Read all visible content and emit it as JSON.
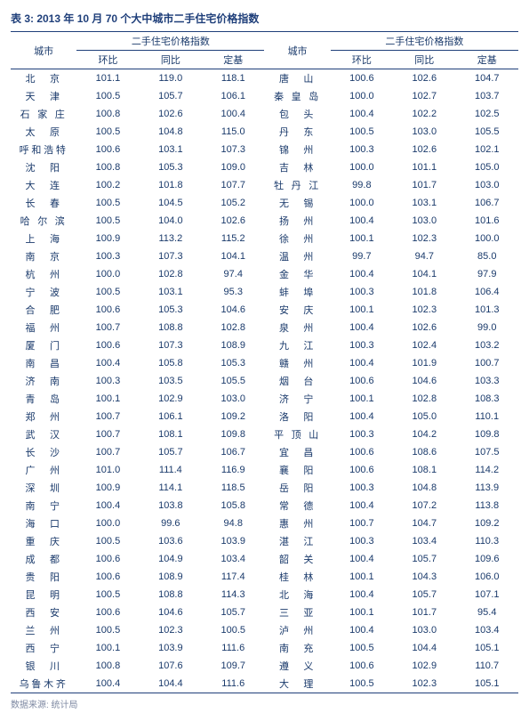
{
  "title": "表 3:  2013 年 10 月 70 个大中城市二手住宅价格指数",
  "headers": {
    "city": "城市",
    "group": "二手住宅价格指数",
    "mom": "环比",
    "yoy": "同比",
    "base": "定基"
  },
  "rows": [
    {
      "lc": "北　京",
      "l": [
        101.1,
        119.0,
        118.1
      ],
      "rc": "唐　山",
      "r": [
        100.6,
        102.6,
        104.7
      ]
    },
    {
      "lc": "天　津",
      "l": [
        100.5,
        105.7,
        106.1
      ],
      "rc": "秦 皇 岛",
      "r": [
        100.0,
        102.7,
        103.7
      ]
    },
    {
      "lc": "石 家 庄",
      "l": [
        100.8,
        102.6,
        100.4
      ],
      "rc": "包　头",
      "r": [
        100.4,
        102.2,
        102.5
      ]
    },
    {
      "lc": "太　原",
      "l": [
        100.5,
        104.8,
        115.0
      ],
      "rc": "丹　东",
      "r": [
        100.5,
        103.0,
        105.5
      ]
    },
    {
      "lc": "呼和浩特",
      "l": [
        100.6,
        103.1,
        107.3
      ],
      "rc": "锦　州",
      "r": [
        100.3,
        102.6,
        102.1
      ]
    },
    {
      "lc": "沈　阳",
      "l": [
        100.8,
        105.3,
        109.0
      ],
      "rc": "吉　林",
      "r": [
        100.0,
        101.1,
        105.0
      ]
    },
    {
      "lc": "大　连",
      "l": [
        100.2,
        101.8,
        107.7
      ],
      "rc": "牡 丹 江",
      "r": [
        99.8,
        101.7,
        103.0
      ]
    },
    {
      "lc": "长　春",
      "l": [
        100.5,
        104.5,
        105.2
      ],
      "rc": "无　锡",
      "r": [
        100.0,
        103.1,
        106.7
      ]
    },
    {
      "lc": "哈 尔 滨",
      "l": [
        100.5,
        104.0,
        102.6
      ],
      "rc": "扬　州",
      "r": [
        100.4,
        103.0,
        101.6
      ]
    },
    {
      "lc": "上　海",
      "l": [
        100.9,
        113.2,
        115.2
      ],
      "rc": "徐　州",
      "r": [
        100.1,
        102.3,
        100.0
      ]
    },
    {
      "lc": "南　京",
      "l": [
        100.3,
        107.3,
        104.1
      ],
      "rc": "温　州",
      "r": [
        99.7,
        94.7,
        85.0
      ]
    },
    {
      "lc": "杭　州",
      "l": [
        100.0,
        102.8,
        97.4
      ],
      "rc": "金　华",
      "r": [
        100.4,
        104.1,
        97.9
      ]
    },
    {
      "lc": "宁　波",
      "l": [
        100.5,
        103.1,
        95.3
      ],
      "rc": "蚌　埠",
      "r": [
        100.3,
        101.8,
        106.4
      ]
    },
    {
      "lc": "合　肥",
      "l": [
        100.6,
        105.3,
        104.6
      ],
      "rc": "安　庆",
      "r": [
        100.1,
        102.3,
        101.3
      ]
    },
    {
      "lc": "福　州",
      "l": [
        100.7,
        108.8,
        102.8
      ],
      "rc": "泉　州",
      "r": [
        100.4,
        102.6,
        99.0
      ]
    },
    {
      "lc": "厦　门",
      "l": [
        100.6,
        107.3,
        108.9
      ],
      "rc": "九　江",
      "r": [
        100.3,
        102.4,
        103.2
      ]
    },
    {
      "lc": "南　昌",
      "l": [
        100.4,
        105.8,
        105.3
      ],
      "rc": "赣　州",
      "r": [
        100.4,
        101.9,
        100.7
      ]
    },
    {
      "lc": "济　南",
      "l": [
        100.3,
        103.5,
        105.5
      ],
      "rc": "烟　台",
      "r": [
        100.6,
        104.6,
        103.3
      ]
    },
    {
      "lc": "青　岛",
      "l": [
        100.1,
        102.9,
        103.0
      ],
      "rc": "济　宁",
      "r": [
        100.1,
        102.8,
        108.3
      ]
    },
    {
      "lc": "郑　州",
      "l": [
        100.7,
        106.1,
        109.2
      ],
      "rc": "洛　阳",
      "r": [
        100.4,
        105.0,
        110.1
      ]
    },
    {
      "lc": "武　汉",
      "l": [
        100.7,
        108.1,
        109.8
      ],
      "rc": "平 顶 山",
      "r": [
        100.3,
        104.2,
        109.8
      ]
    },
    {
      "lc": "长　沙",
      "l": [
        100.7,
        105.7,
        106.7
      ],
      "rc": "宜　昌",
      "r": [
        100.6,
        108.6,
        107.5
      ]
    },
    {
      "lc": "广　州",
      "l": [
        101.0,
        111.4,
        116.9
      ],
      "rc": "襄　阳",
      "r": [
        100.6,
        108.1,
        114.2
      ]
    },
    {
      "lc": "深　圳",
      "l": [
        100.9,
        114.1,
        118.5
      ],
      "rc": "岳　阳",
      "r": [
        100.3,
        104.8,
        113.9
      ]
    },
    {
      "lc": "南　宁",
      "l": [
        100.4,
        103.8,
        105.8
      ],
      "rc": "常　德",
      "r": [
        100.4,
        107.2,
        113.8
      ]
    },
    {
      "lc": "海　口",
      "l": [
        100.0,
        99.6,
        94.8
      ],
      "rc": "惠　州",
      "r": [
        100.7,
        104.7,
        109.2
      ]
    },
    {
      "lc": "重　庆",
      "l": [
        100.5,
        103.6,
        103.9
      ],
      "rc": "湛　江",
      "r": [
        100.3,
        103.4,
        110.3
      ]
    },
    {
      "lc": "成　都",
      "l": [
        100.6,
        104.9,
        103.4
      ],
      "rc": "韶　关",
      "r": [
        100.4,
        105.7,
        109.6
      ]
    },
    {
      "lc": "贵　阳",
      "l": [
        100.6,
        108.9,
        117.4
      ],
      "rc": "桂　林",
      "r": [
        100.1,
        104.3,
        106.0
      ]
    },
    {
      "lc": "昆　明",
      "l": [
        100.5,
        108.8,
        114.3
      ],
      "rc": "北　海",
      "r": [
        100.4,
        105.7,
        107.1
      ]
    },
    {
      "lc": "西　安",
      "l": [
        100.6,
        104.6,
        105.7
      ],
      "rc": "三　亚",
      "r": [
        100.1,
        101.7,
        95.4
      ]
    },
    {
      "lc": "兰　州",
      "l": [
        100.5,
        102.3,
        100.5
      ],
      "rc": "泸　州",
      "r": [
        100.4,
        103.0,
        103.4
      ]
    },
    {
      "lc": "西　宁",
      "l": [
        100.1,
        103.9,
        111.6
      ],
      "rc": "南　充",
      "r": [
        100.5,
        104.4,
        105.1
      ]
    },
    {
      "lc": "银　川",
      "l": [
        100.8,
        107.6,
        109.7
      ],
      "rc": "遵　义",
      "r": [
        100.6,
        102.9,
        110.7
      ]
    },
    {
      "lc": "乌鲁木齐",
      "l": [
        100.4,
        104.4,
        111.6
      ],
      "rc": "大　理",
      "r": [
        100.5,
        102.3,
        105.1
      ]
    }
  ],
  "footnote": "数据来源: 统计局",
  "colors": {
    "primary": "#1f3f7a",
    "muted": "#7f8aa3",
    "bg": "#ffffff"
  },
  "font_size": 11
}
